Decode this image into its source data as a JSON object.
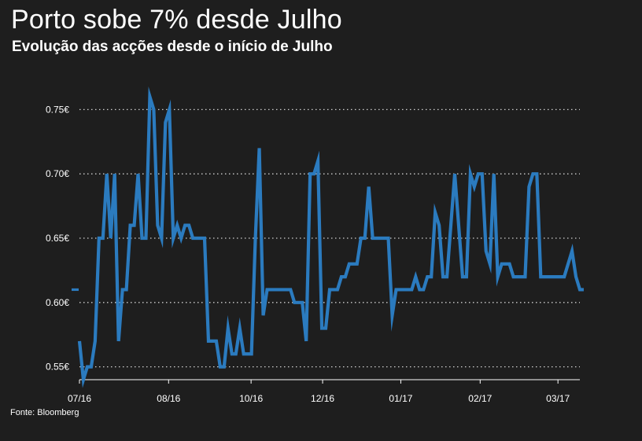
{
  "chart_data": {
    "type": "line",
    "title": "Porto sobe 7% desde Julho",
    "subtitle": "Evolução das acções desde o início de Julho",
    "source": "Fonte: Bloomberg",
    "xlabel": "",
    "ylabel": "",
    "ylim": [
      0.54,
      0.76
    ],
    "yticks": [
      {
        "value": 0.55,
        "label": "0.55€"
      },
      {
        "value": 0.6,
        "label": "0.60€"
      },
      {
        "value": 0.65,
        "label": "0.65€"
      },
      {
        "value": 0.7,
        "label": "0.70€"
      },
      {
        "value": 0.75,
        "label": "0.75€"
      }
    ],
    "xlim": [
      0,
      128
    ],
    "xticks": [
      {
        "x": 0,
        "label": "07/16"
      },
      {
        "x": 22.8,
        "label": "08/16"
      },
      {
        "x": 43.9,
        "label": "10/16"
      },
      {
        "x": 62.2,
        "label": "12/16"
      },
      {
        "x": 82.2,
        "label": "01/17"
      },
      {
        "x": 102.5,
        "label": "02/17"
      },
      {
        "x": 122.4,
        "label": "03/17"
      }
    ],
    "grid": true,
    "series": [
      {
        "name": "Porto",
        "color": "#2b7bbf",
        "start_value": 0.61,
        "values": [
          0.57,
          0.54,
          0.55,
          0.55,
          0.57,
          0.65,
          0.65,
          0.7,
          0.65,
          0.7,
          0.57,
          0.61,
          0.61,
          0.66,
          0.66,
          0.7,
          0.65,
          0.65,
          0.76,
          0.75,
          0.66,
          0.65,
          0.74,
          0.75,
          0.65,
          0.66,
          0.65,
          0.66,
          0.66,
          0.65,
          0.65,
          0.65,
          0.65,
          0.57,
          0.57,
          0.57,
          0.55,
          0.55,
          0.58,
          0.56,
          0.56,
          0.58,
          0.56,
          0.56,
          0.56,
          0.65,
          0.72,
          0.59,
          0.61,
          0.61,
          0.61,
          0.61,
          0.61,
          0.61,
          0.61,
          0.6,
          0.6,
          0.6,
          0.57,
          0.7,
          0.7,
          0.71,
          0.58,
          0.58,
          0.61,
          0.61,
          0.61,
          0.62,
          0.62,
          0.63,
          0.63,
          0.63,
          0.65,
          0.65,
          0.69,
          0.65,
          0.65,
          0.65,
          0.65,
          0.65,
          0.59,
          0.61,
          0.61,
          0.61,
          0.61,
          0.61,
          0.62,
          0.61,
          0.61,
          0.62,
          0.62,
          0.67,
          0.66,
          0.62,
          0.62,
          0.66,
          0.7,
          0.66,
          0.62,
          0.62,
          0.7,
          0.69,
          0.7,
          0.7,
          0.64,
          0.63,
          0.7,
          0.62,
          0.63,
          0.63,
          0.63,
          0.62,
          0.62,
          0.62,
          0.62,
          0.69,
          0.7,
          0.7,
          0.62,
          0.62,
          0.62,
          0.62,
          0.62,
          0.62,
          0.62,
          0.63,
          0.64,
          0.62,
          0.61,
          0.61
        ]
      }
    ]
  }
}
